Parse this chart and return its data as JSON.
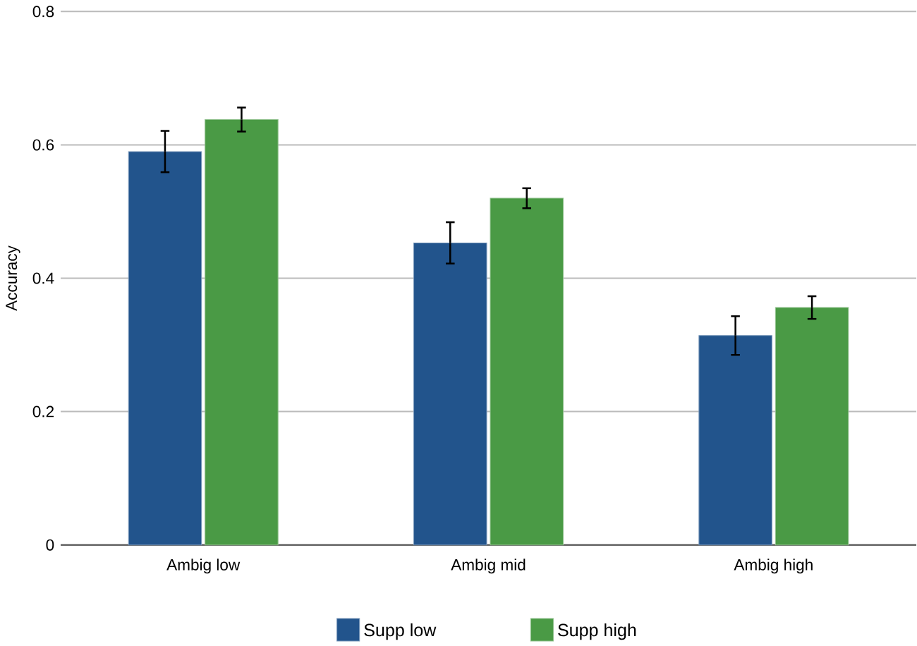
{
  "chart_data": {
    "type": "bar",
    "ylabel": "Accuracy",
    "categories": [
      "Ambig low",
      "Ambig mid",
      "Ambig high"
    ],
    "series": [
      {
        "name": "Supp low",
        "color": "#22548c",
        "values": [
          0.59,
          0.453,
          0.314
        ],
        "errors": [
          0.031,
          0.031,
          0.029
        ]
      },
      {
        "name": "Supp high",
        "color": "#4a9a45",
        "values": [
          0.638,
          0.52,
          0.356
        ],
        "errors": [
          0.018,
          0.015,
          0.017
        ]
      }
    ],
    "ylim": [
      0,
      0.8
    ],
    "yticks": [
      0,
      0.2,
      0.4,
      0.6,
      0.8
    ],
    "grid": "y",
    "legend": "bottom"
  }
}
